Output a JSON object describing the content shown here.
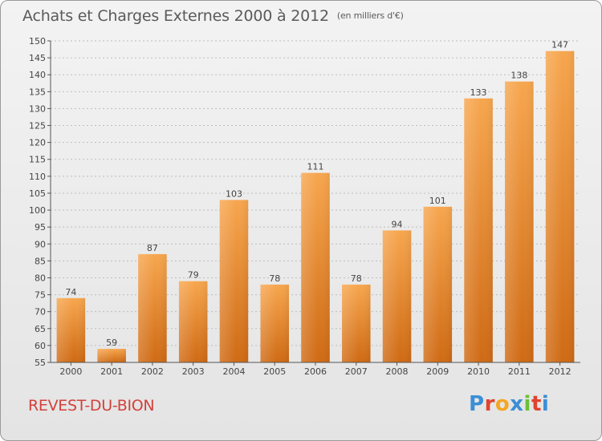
{
  "header": {
    "title": "Achats et Charges Externes 2000 à 2012",
    "unit_note": "(en milliers d'€)"
  },
  "footer": {
    "commune": "REVEST-DU-BION",
    "logo_letters": [
      "P",
      "r",
      "o",
      "x",
      "i",
      "t",
      "i"
    ],
    "logo_colors": [
      "#3a8fd6",
      "#e0432f",
      "#f5a623",
      "#3a8fd6",
      "#6cbf3a",
      "#e0432f",
      "#3a8fd6"
    ]
  },
  "colors": {
    "bar_light": "#f7a64e",
    "bar_dark": "#cf6a14",
    "axis": "#555555",
    "text": "#444444",
    "grid": "#bdbdbd"
  },
  "chart_data": {
    "type": "bar",
    "title": "Achats et Charges Externes 2000 à 2012",
    "subtitle": "(en milliers d'€)",
    "xlabel": "",
    "ylabel": "",
    "categories": [
      "2000",
      "2001",
      "2002",
      "2003",
      "2004",
      "2005",
      "2006",
      "2007",
      "2008",
      "2009",
      "2010",
      "2011",
      "2012"
    ],
    "values": [
      74,
      59,
      87,
      79,
      103,
      78,
      111,
      78,
      94,
      101,
      133,
      138,
      147
    ],
    "ylim": [
      55,
      150
    ],
    "yticks": [
      55,
      60,
      65,
      70,
      75,
      80,
      85,
      90,
      95,
      100,
      105,
      110,
      115,
      120,
      125,
      130,
      135,
      140,
      145,
      150
    ],
    "grid": true,
    "legend": "none"
  }
}
